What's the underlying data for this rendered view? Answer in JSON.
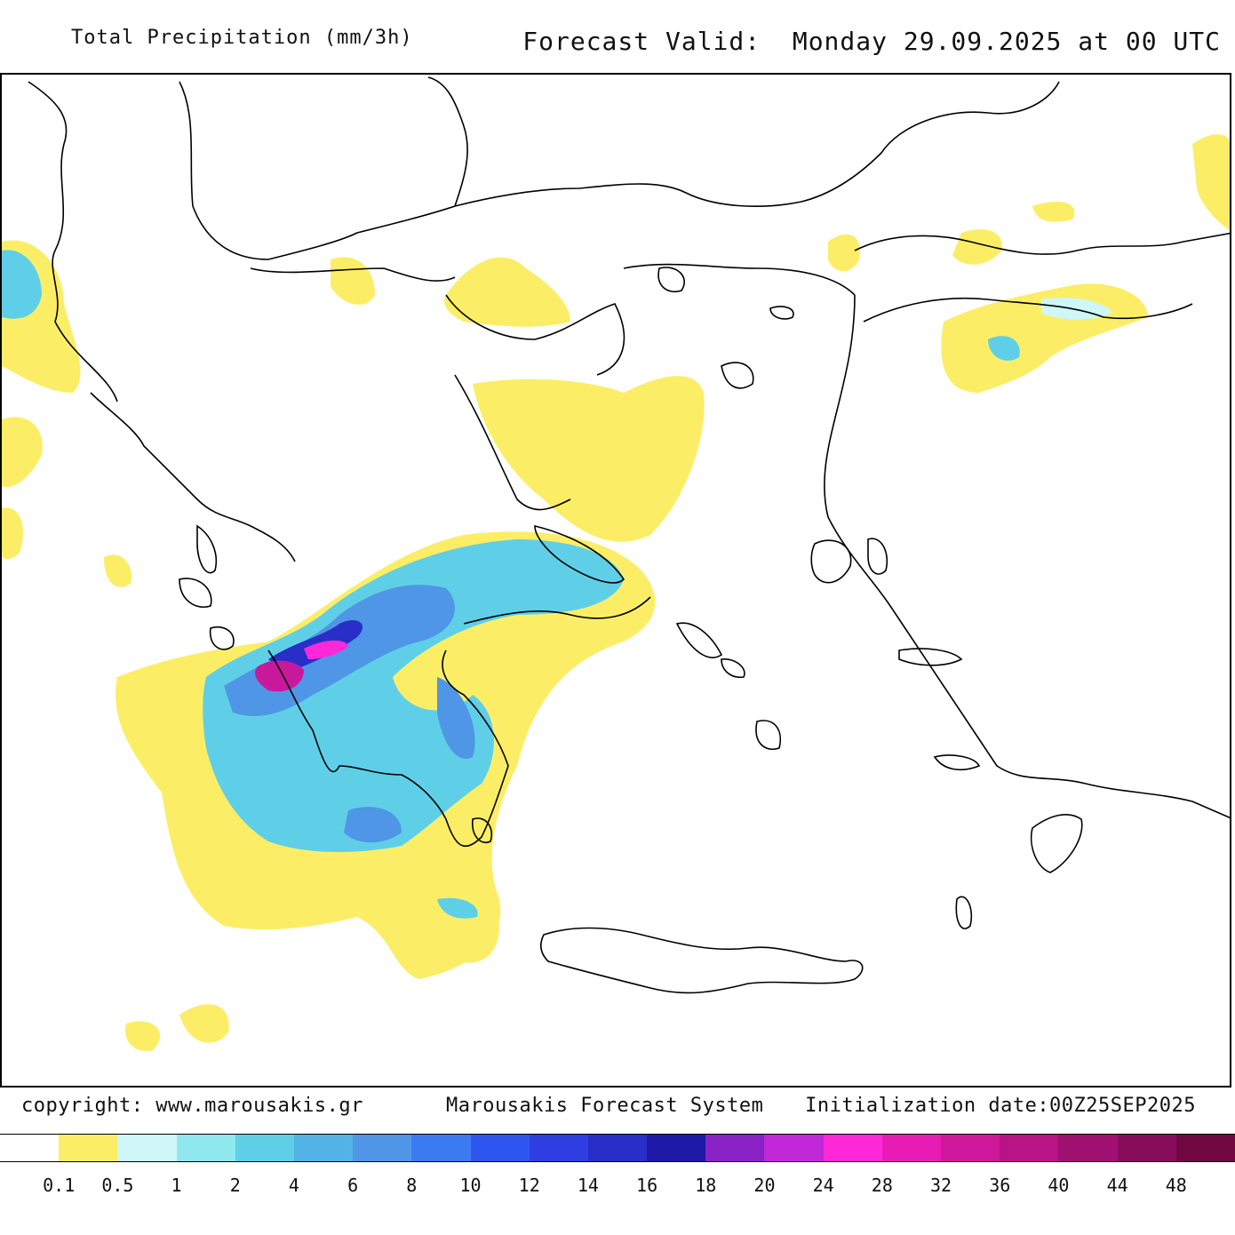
{
  "header": {
    "left_title": "Total Precipitation (mm/3h)",
    "right_title": "Forecast Valid:  Monday 29.09.2025 at 00 UTC"
  },
  "footer": {
    "copyright": "copyright: www.marousakis.gr",
    "system": "Marousakis Forecast System",
    "initialization": "Initialization date:00Z25SEP2025"
  },
  "legend": {
    "colors": [
      "#ffffff",
      "#fbee66",
      "#cff7f7",
      "#8fe8ee",
      "#5fcfe8",
      "#53b3e6",
      "#4f96e6",
      "#3b7af0",
      "#2f55f0",
      "#2f3ee0",
      "#2a2ec8",
      "#1e18a8",
      "#8a22c8",
      "#c028d8",
      "#ff28d8",
      "#e81cb4",
      "#d0189c",
      "#b81486",
      "#a01070",
      "#880c5c",
      "#70083f"
    ],
    "labels": [
      "0.1",
      "0.5",
      "1",
      "2",
      "4",
      "6",
      "8",
      "10",
      "12",
      "14",
      "16",
      "18",
      "20",
      "24",
      "28",
      "32",
      "36",
      "40",
      "44",
      "48"
    ]
  },
  "map": {
    "region": "Greece and Aegean Sea",
    "field_colors": {
      "light": "#fbee66",
      "pale_cyan": "#cff7f7",
      "cyan": "#8fe8ee",
      "mid_blue": "#5fcfe8",
      "blue": "#4f96e6",
      "dark_blue": "#2a2ec8",
      "magenta": "#c8189c",
      "pink": "#ff28d8"
    }
  }
}
